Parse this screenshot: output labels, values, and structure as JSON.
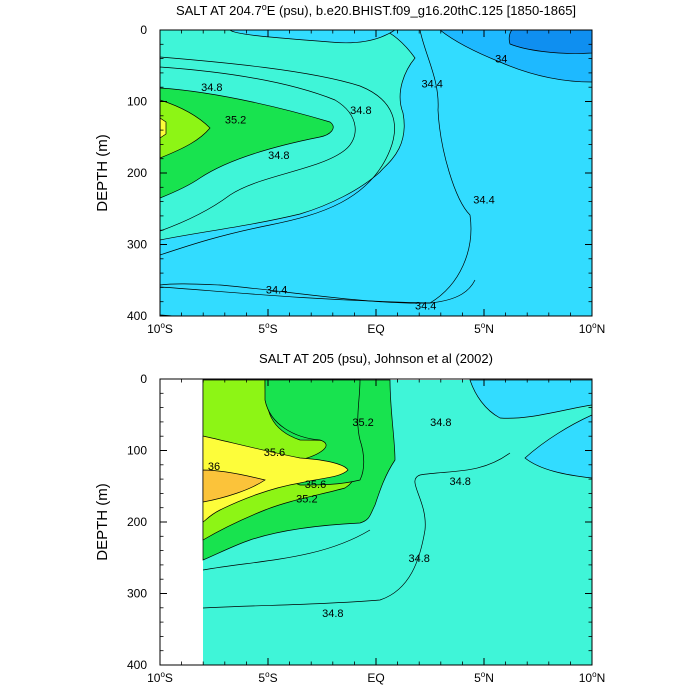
{
  "chart_data": [
    {
      "type": "contour",
      "title_main": "SALT AT 204.7",
      "title_sup": "o",
      "title_rest": "E (psu), b.e20.BHIST.f09_g16.20thC.125 [1850-1865]",
      "xlabel": "",
      "ylabel": "DEPTH (m)",
      "xlim": [
        -10,
        10
      ],
      "ylim": [
        400,
        0
      ],
      "x_ticks": [
        {
          "value": -10,
          "num": "10",
          "sup": "o",
          "hemi": "S"
        },
        {
          "value": -5,
          "num": "5",
          "sup": "o",
          "hemi": "S"
        },
        {
          "value": 0,
          "num": "EQ",
          "sup": "",
          "hemi": ""
        },
        {
          "value": 5,
          "num": "5",
          "sup": "o",
          "hemi": "N"
        },
        {
          "value": 10,
          "num": "10",
          "sup": "o",
          "hemi": "N"
        }
      ],
      "y_ticks": [
        0,
        100,
        200,
        300,
        400
      ],
      "contour_labels": [
        {
          "text": "34.8",
          "lat": -7.6,
          "depth": 80
        },
        {
          "text": "35.2",
          "lat": -6.5,
          "depth": 125
        },
        {
          "text": "34.8",
          "lat": -4.5,
          "depth": 175
        },
        {
          "text": "34.8",
          "lat": -0.7,
          "depth": 112
        },
        {
          "text": "34.4",
          "lat": 2.6,
          "depth": 75
        },
        {
          "text": "34",
          "lat": 5.8,
          "depth": 40
        },
        {
          "text": "34.4",
          "lat": 5.0,
          "depth": 237
        },
        {
          "text": "34.4",
          "lat": -4.6,
          "depth": 363
        },
        {
          "text": "34.4",
          "lat": 2.3,
          "depth": 385
        }
      ]
    },
    {
      "type": "contour",
      "title_main": "SALT AT 205 (psu), Johnson et al (2002)",
      "title_sup": "",
      "title_rest": "",
      "xlabel": "",
      "ylabel": "DEPTH (m)",
      "xlim": [
        -10,
        10
      ],
      "ylim": [
        400,
        0
      ],
      "x_ticks": [
        {
          "value": -10,
          "num": "10",
          "sup": "o",
          "hemi": "S"
        },
        {
          "value": -5,
          "num": "5",
          "sup": "o",
          "hemi": "S"
        },
        {
          "value": 0,
          "num": "EQ",
          "sup": "",
          "hemi": ""
        },
        {
          "value": 5,
          "num": "5",
          "sup": "o",
          "hemi": "N"
        },
        {
          "value": 10,
          "num": "10",
          "sup": "o",
          "hemi": "N"
        }
      ],
      "y_ticks": [
        0,
        100,
        200,
        300,
        400
      ],
      "contour_labels": [
        {
          "text": "35.2",
          "lat": -0.6,
          "depth": 60
        },
        {
          "text": "34.8",
          "lat": 3.0,
          "depth": 60
        },
        {
          "text": "35.6",
          "lat": -4.7,
          "depth": 102
        },
        {
          "text": "36",
          "lat": -7.5,
          "depth": 122
        },
        {
          "text": "35.6",
          "lat": -2.8,
          "depth": 147
        },
        {
          "text": "35.2",
          "lat": -3.2,
          "depth": 167
        },
        {
          "text": "34.8",
          "lat": 3.9,
          "depth": 143
        },
        {
          "text": "34.8",
          "lat": 2.0,
          "depth": 250
        },
        {
          "text": "34.8",
          "lat": -2.0,
          "depth": 327
        }
      ]
    }
  ],
  "colors": {
    "c33_8": "#0f8ff0",
    "c34_0": "#1eb9ff",
    "c34_4": "#32dcff",
    "c34_8": "#3ff5d8",
    "c35_2": "#18e34f",
    "c35_6": "#8df515",
    "c36_0": "#fdfd3a",
    "c36_4": "#fbc33a"
  }
}
